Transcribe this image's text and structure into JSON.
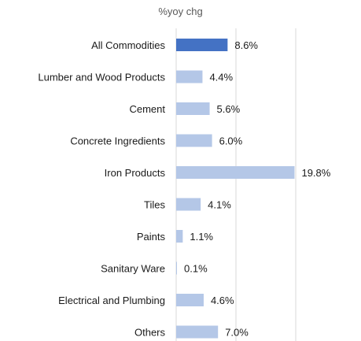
{
  "chart_data": {
    "type": "bar",
    "orientation": "horizontal",
    "title": "%yoy chg",
    "categories": [
      "All Commodities",
      "Lumber and Wood Products",
      "Cement",
      "Concrete Ingredients",
      "Iron Products",
      "Tiles",
      "Paints",
      "Sanitary Ware",
      "Electrical and Plumbing",
      "Others"
    ],
    "values": [
      8.6,
      4.4,
      5.6,
      6.0,
      19.8,
      4.1,
      1.1,
      0.1,
      4.6,
      7.0
    ],
    "value_labels": [
      "8.6%",
      "4.4%",
      "5.6%",
      "6.0%",
      "19.8%",
      "4.1%",
      "1.1%",
      "0.1%",
      "4.6%",
      "7.0%"
    ],
    "xlim": [
      0,
      25
    ],
    "grid": "vertical",
    "highlight_index": 0,
    "colors": {
      "highlight": "#4472c4",
      "bar": "#b4c7e7",
      "grid": "#d9d9d9",
      "text": "#1a1a1a",
      "title": "#595959"
    }
  }
}
